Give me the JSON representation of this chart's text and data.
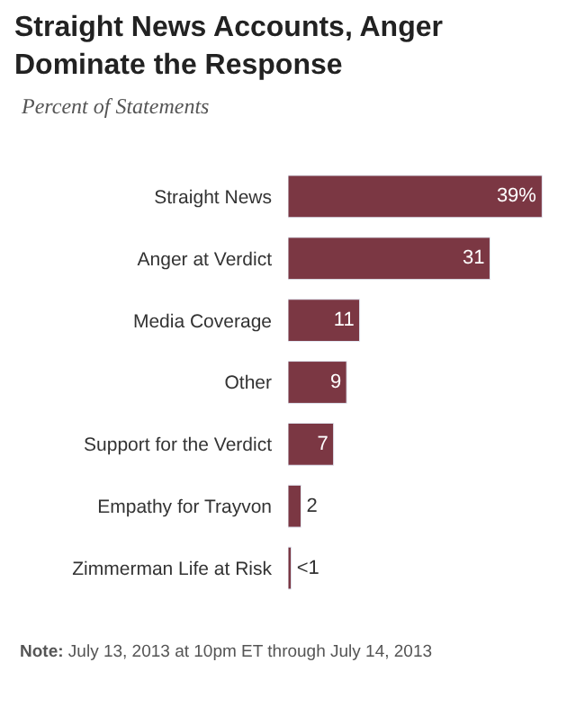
{
  "chart_data": {
    "type": "bar",
    "orientation": "horizontal",
    "title": "Straight News Accounts, Anger Dominate the Response",
    "subtitle": "Percent of Statements",
    "categories": [
      "Straight News",
      "Anger at Verdict",
      "Media Coverage",
      "Other",
      "Support for the Verdict",
      "Empathy for Trayvon",
      "Zimmerman Life at Risk"
    ],
    "values": [
      39,
      31,
      11,
      9,
      7,
      2,
      0.5
    ],
    "value_labels": [
      "39%",
      "31",
      "11",
      "9",
      "7",
      "2",
      "<1"
    ],
    "color": "#7b3743",
    "annotations": [
      "Note: July 13, 2013 at 10pm ET through July 14, 2013"
    ]
  }
}
